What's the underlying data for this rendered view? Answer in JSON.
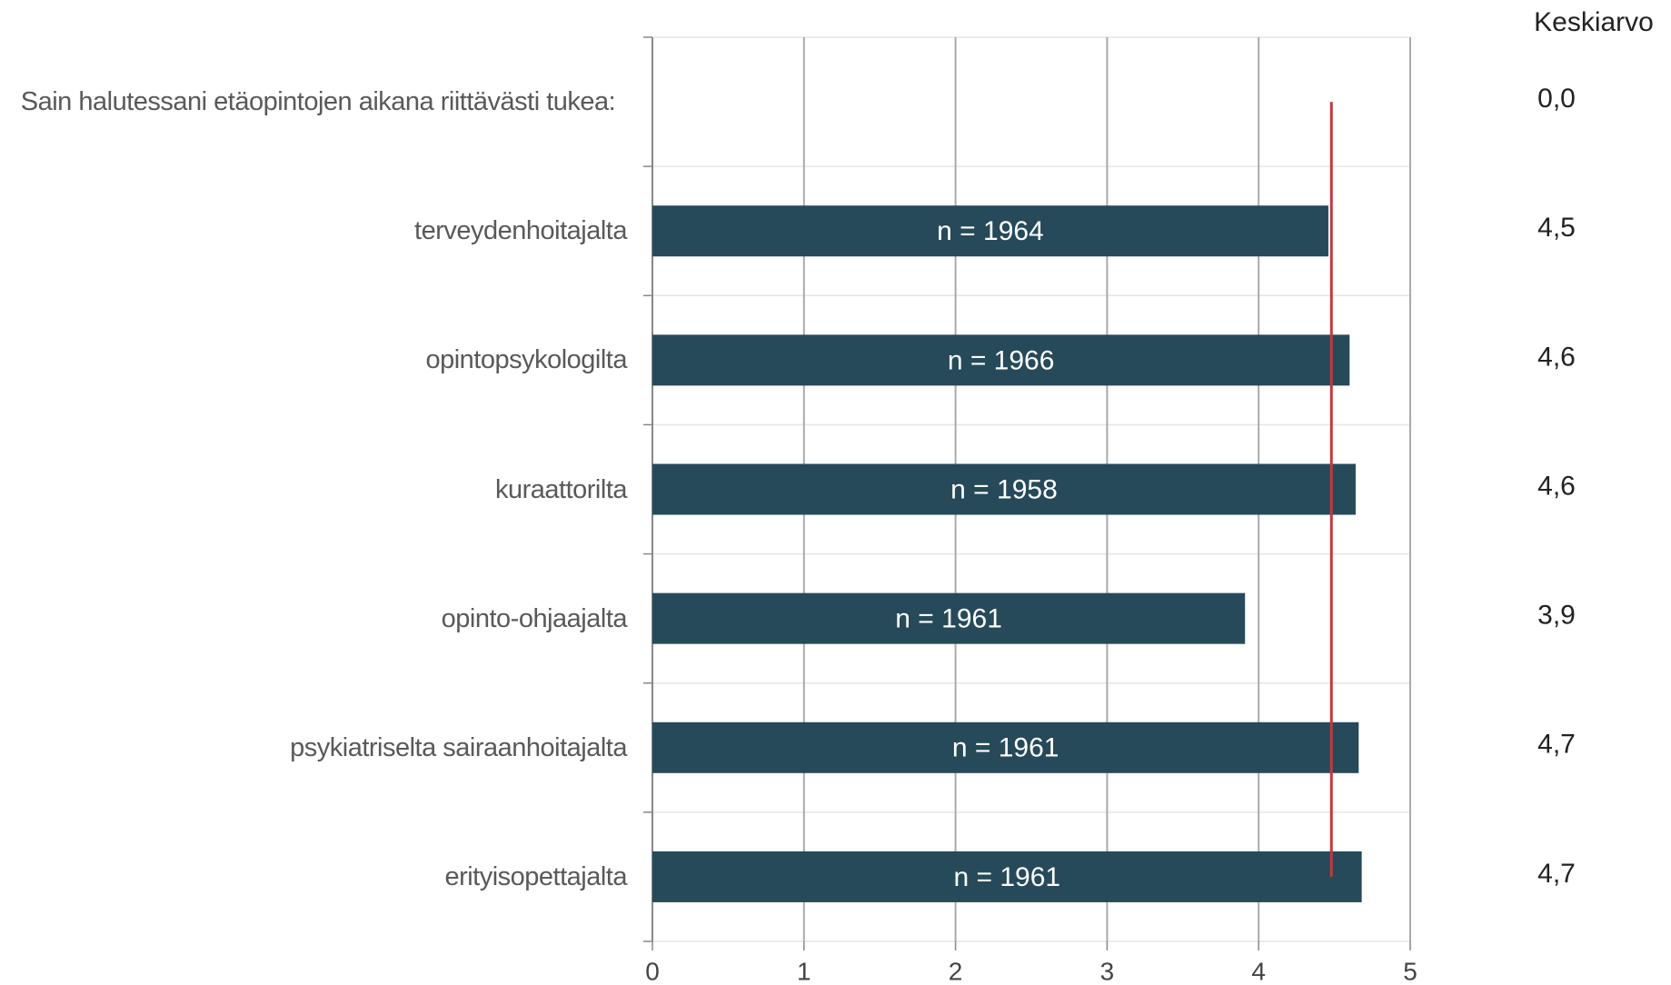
{
  "chart_data": {
    "type": "bar",
    "orientation": "horizontal",
    "categories": [
      "Sain halutessani etäopintojen aikana riittävästi tukea:",
      "terveydenhoitajalta",
      "opintopsykologilta",
      "kuraattorilta",
      "opinto-ohjaajalta",
      "psykiatriselta sairaanhoitajalta",
      "erityisopettajalta"
    ],
    "values": [
      0,
      4.46,
      4.6,
      4.64,
      3.91,
      4.66,
      4.68
    ],
    "value_labels": [
      "0,0",
      "4,5",
      "4,6",
      "4,6",
      "3,9",
      "4,7",
      "4,7"
    ],
    "bar_labels": [
      null,
      "n = 1964",
      "n = 1966",
      "n = 1958",
      "n = 1961",
      "n = 1961",
      "n = 1961"
    ],
    "value_labels_title": "Keskiarvo",
    "color": "#264a5a",
    "reference_line": {
      "value": 4.48,
      "color": "#c0393f"
    },
    "xlim": [
      0,
      5
    ],
    "xticks": [
      0,
      1,
      2,
      3,
      4,
      5
    ],
    "grid": true
  }
}
